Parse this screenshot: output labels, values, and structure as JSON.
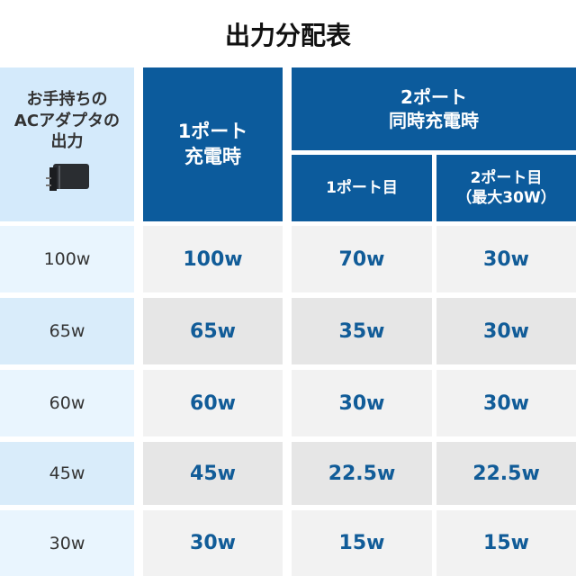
{
  "title": "出力分配表",
  "header": {
    "col1_lines": [
      "お手持ちの",
      "ACアダプタの",
      "出力"
    ],
    "col1_icon": "ac-adapter-icon",
    "col2_lines": [
      "1ポート",
      "充電時"
    ],
    "group_lines": [
      "2ポート",
      "同時充電時"
    ],
    "col3_lines": [
      "1ポート目"
    ],
    "col4_lines": [
      "2ポート目",
      "（最大30W）"
    ]
  },
  "rows": [
    {
      "input": "100w",
      "single": "100w",
      "port1": "70w",
      "port2": "30w"
    },
    {
      "input": "65w",
      "single": "65w",
      "port1": "35w",
      "port2": "30w"
    },
    {
      "input": "60w",
      "single": "60w",
      "port1": "30w",
      "port2": "30w"
    },
    {
      "input": "45w",
      "single": "45w",
      "port1": "22.5w",
      "port2": "22.5w"
    },
    {
      "input": "30w",
      "single": "30w",
      "port1": "15w",
      "port2": "15w"
    }
  ],
  "colors": {
    "header_dark": "#0c5b9c",
    "header_light": "#d4eafb",
    "value_text": "#115c98"
  }
}
